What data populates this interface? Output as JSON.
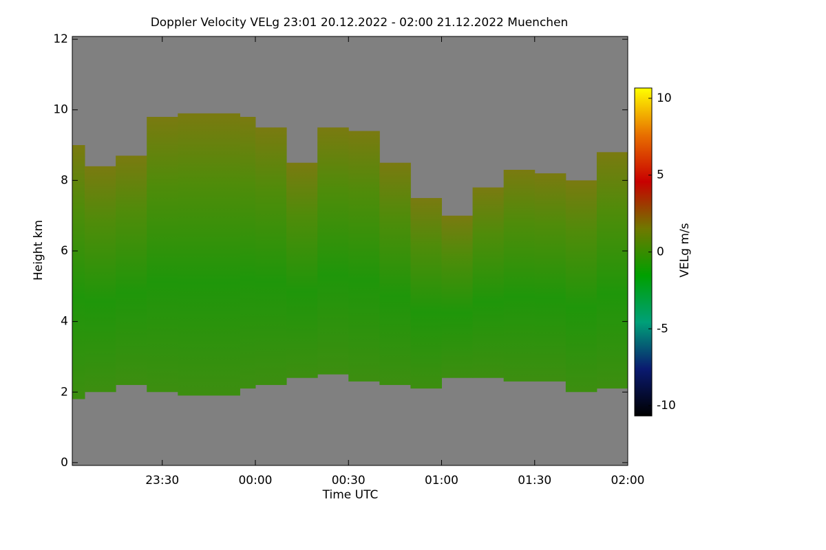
{
  "chart_data": {
    "type": "heatmap",
    "title": "Doppler Velocity VELg   23:01 20.12.2022 - 02:00 21.12.2022 Muenchen",
    "x_label": "Time UTC",
    "y_label": "Height km",
    "colorbar_label": "VELg m/s",
    "x": [
      -59,
      -55,
      -45,
      -35,
      -25,
      -15,
      -5,
      0,
      10,
      20,
      30,
      40,
      50,
      60,
      70,
      80,
      90,
      100,
      110,
      120
    ],
    "cloud_top": [
      9.0,
      8.4,
      8.7,
      9.8,
      9.9,
      9.9,
      9.8,
      9.5,
      8.5,
      9.5,
      9.4,
      8.5,
      7.5,
      7.0,
      7.8,
      8.3,
      8.2,
      8.0,
      8.8,
      8.8
    ],
    "cloud_base": [
      1.8,
      2.0,
      2.2,
      2.0,
      1.9,
      1.9,
      2.1,
      2.2,
      2.4,
      2.5,
      2.3,
      2.2,
      2.1,
      2.4,
      2.4,
      2.3,
      2.3,
      2.0,
      2.1,
      1.9
    ],
    "xlim": [
      -59,
      120
    ],
    "xticks": [
      {
        "value": -30,
        "label": "23:30"
      },
      {
        "value": 0,
        "label": "00:00"
      },
      {
        "value": 30,
        "label": "00:30"
      },
      {
        "value": 60,
        "label": "01:00"
      },
      {
        "value": 90,
        "label": "01:30"
      },
      {
        "value": 120,
        "label": "02:00"
      }
    ],
    "ylim": [
      -0.08,
      12.08
    ],
    "yticks": [
      0,
      2,
      4,
      6,
      8,
      10,
      12
    ],
    "clim": [
      -10.67,
      10.67
    ],
    "cticks": [
      -10,
      -5,
      0,
      5,
      10
    ],
    "colormap": [
      "#000000",
      "#0a1a70",
      "#00a078",
      "#00a000",
      "#707800",
      "#c80000",
      "#e87000",
      "#ffff00"
    ],
    "background": "#808080"
  }
}
